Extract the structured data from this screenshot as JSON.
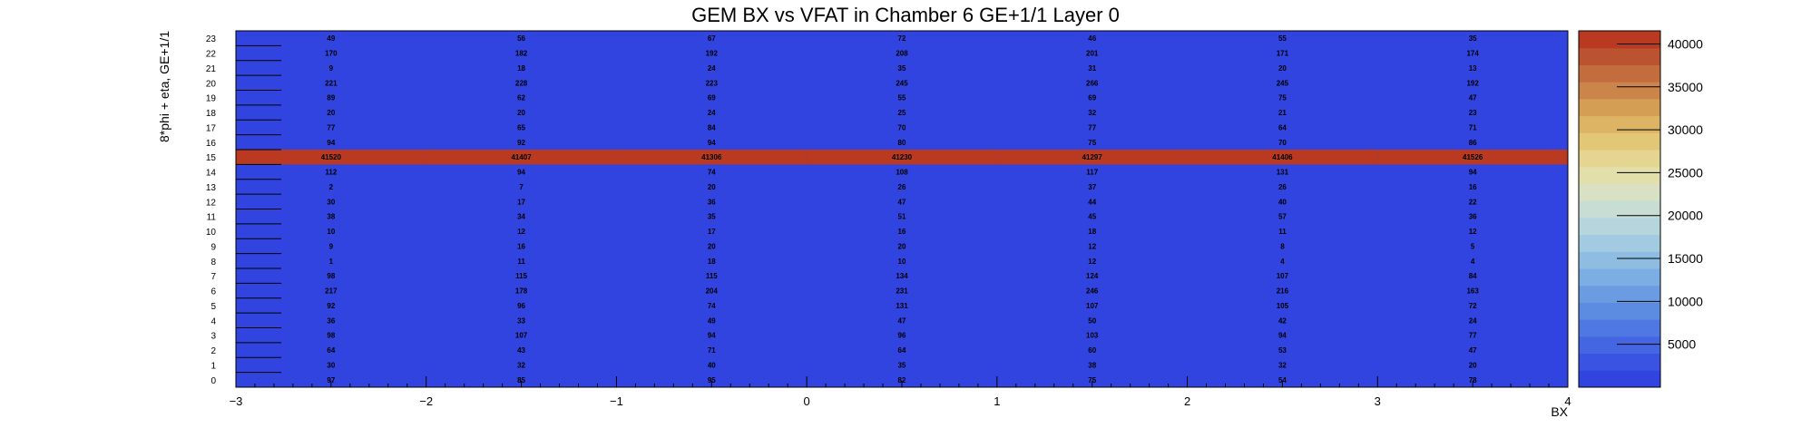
{
  "chart_data": {
    "type": "heatmap",
    "title": "GEM BX vs VFAT in Chamber 6 GE+1/1 Layer 0",
    "xlabel": "BX",
    "ylabel": "8*phi + eta, GE+1/1",
    "xlim": [
      -3,
      4
    ],
    "ylim": [
      0,
      24
    ],
    "x_ticks": [
      "−3",
      "−2",
      "−1",
      "0",
      "1",
      "2",
      "3",
      "4"
    ],
    "y_ticks": [
      "0",
      "1",
      "2",
      "3",
      "4",
      "5",
      "6",
      "7",
      "8",
      "9",
      "10",
      "11",
      "12",
      "13",
      "14",
      "15",
      "16",
      "17",
      "18",
      "19",
      "20",
      "21",
      "22",
      "23"
    ],
    "x_bin_centers": [
      -2.5,
      -1.5,
      -0.5,
      0.5,
      1.5,
      2.5,
      3.5
    ],
    "y_bins": [
      0,
      1,
      2,
      3,
      4,
      5,
      6,
      7,
      8,
      9,
      10,
      11,
      12,
      13,
      14,
      15,
      16,
      17,
      18,
      19,
      20,
      21,
      22,
      23
    ],
    "values": [
      [
        97,
        85,
        95,
        82,
        75,
        54,
        78
      ],
      [
        30,
        32,
        40,
        35,
        38,
        32,
        20
      ],
      [
        64,
        43,
        71,
        64,
        60,
        53,
        47
      ],
      [
        98,
        107,
        94,
        96,
        103,
        94,
        77
      ],
      [
        36,
        33,
        49,
        47,
        50,
        42,
        24
      ],
      [
        92,
        96,
        74,
        131,
        107,
        105,
        72
      ],
      [
        217,
        178,
        204,
        231,
        246,
        216,
        163
      ],
      [
        98,
        115,
        115,
        134,
        124,
        107,
        84
      ],
      [
        1,
        11,
        18,
        10,
        12,
        4,
        4
      ],
      [
        9,
        16,
        20,
        20,
        12,
        8,
        5
      ],
      [
        10,
        12,
        17,
        16,
        18,
        11,
        12
      ],
      [
        38,
        34,
        35,
        51,
        45,
        57,
        36
      ],
      [
        30,
        17,
        36,
        47,
        44,
        40,
        22
      ],
      [
        2,
        7,
        20,
        26,
        37,
        26,
        16
      ],
      [
        112,
        94,
        74,
        108,
        117,
        131,
        94
      ],
      [
        41520,
        41407,
        41306,
        41230,
        41297,
        41406,
        41526
      ],
      [
        94,
        92,
        94,
        80,
        75,
        70,
        86
      ],
      [
        77,
        65,
        84,
        70,
        77,
        64,
        71
      ],
      [
        20,
        20,
        24,
        25,
        32,
        21,
        23
      ],
      [
        89,
        62,
        69,
        55,
        69,
        75,
        47
      ],
      [
        221,
        228,
        223,
        245,
        266,
        245,
        192
      ],
      [
        9,
        18,
        24,
        35,
        31,
        20,
        13
      ],
      [
        170,
        182,
        192,
        208,
        201,
        171,
        174
      ],
      [
        49,
        56,
        67,
        72,
        46,
        55,
        35
      ]
    ],
    "z_range": [
      0,
      41526
    ],
    "z_ticks": [
      "5000",
      "10000",
      "15000",
      "20000",
      "25000",
      "30000",
      "35000",
      "40000"
    ],
    "colors": {
      "low": "#3144e0",
      "high": "#b93a20",
      "palette": [
        "#3144e0",
        "#3a53e2",
        "#4466e2",
        "#4f78e3",
        "#5c8be2",
        "#6b9ce2",
        "#7cade3",
        "#8fbde2",
        "#a2cbe1",
        "#b5d6dd",
        "#c8ddd3",
        "#d8e1c4",
        "#e2dfab",
        "#e4d690",
        "#e2c777",
        "#ddb464",
        "#d59e55",
        "#cb854a",
        "#c36c3e",
        "#bb5230",
        "#b93a20"
      ]
    }
  }
}
